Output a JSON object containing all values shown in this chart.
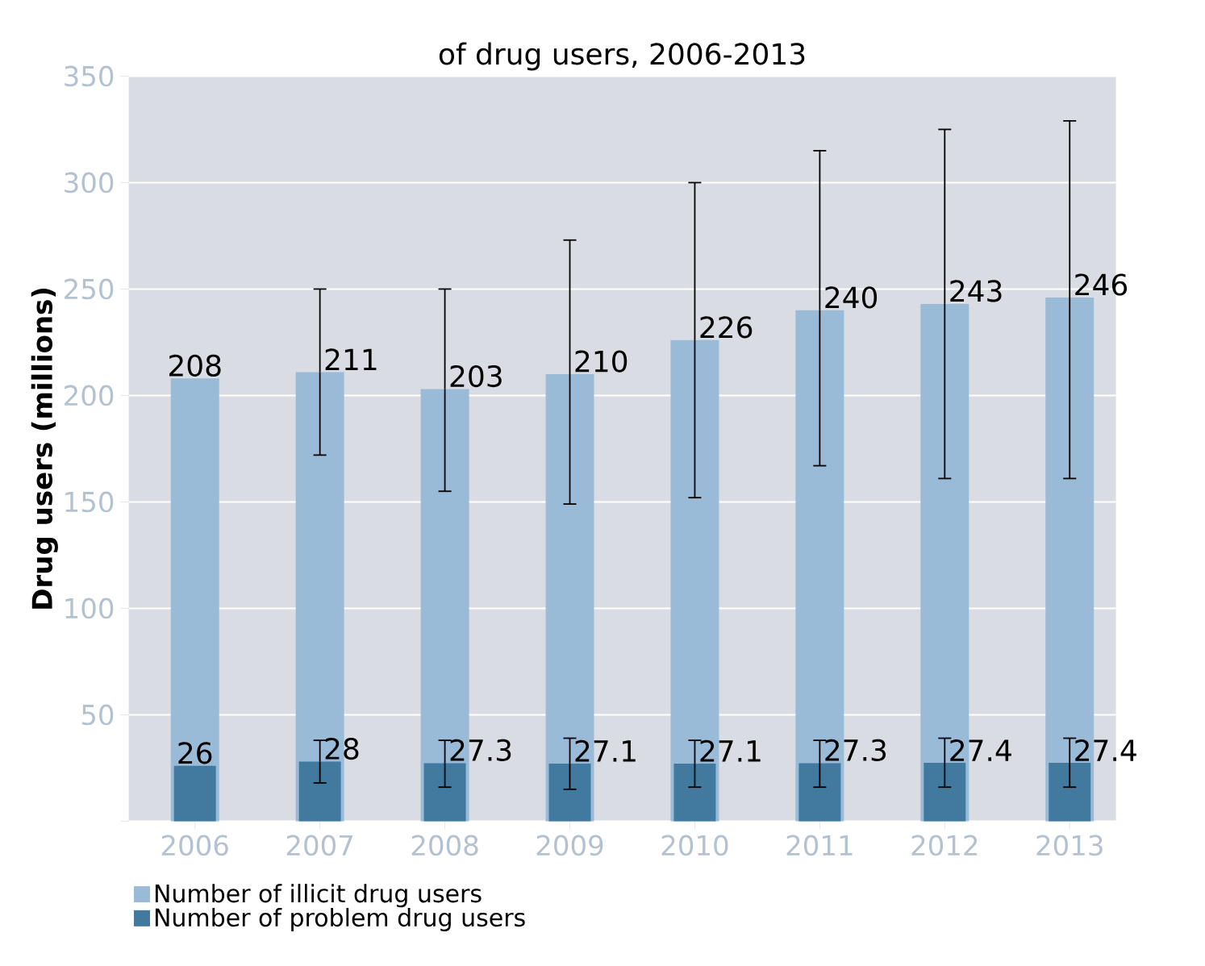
{
  "chart_data": {
    "type": "bar",
    "title": "of drug users, 2006-2013",
    "ylabel": "Drug users (millions)",
    "categories": [
      "2006",
      "2007",
      "2008",
      "2009",
      "2010",
      "2011",
      "2012",
      "2013"
    ],
    "series": [
      {
        "name": "Number of illicit drug users",
        "color": "#9abbd8",
        "values": [
          208,
          211,
          203,
          210,
          226,
          240,
          243,
          246
        ],
        "errors": [
          null,
          [
            172,
            250
          ],
          [
            155,
            250
          ],
          [
            149,
            273
          ],
          [
            152,
            300
          ],
          [
            167,
            315
          ],
          [
            161,
            325
          ],
          [
            161,
            329
          ]
        ]
      },
      {
        "name": "Number of problem drug users",
        "color": "#41799f",
        "values": [
          26,
          28,
          27.3,
          27.1,
          27.1,
          27.3,
          27.4,
          27.4
        ],
        "errors": [
          null,
          [
            18,
            38
          ],
          [
            16,
            38
          ],
          [
            15,
            39
          ],
          [
            16,
            38
          ],
          [
            16,
            38
          ],
          [
            16,
            39
          ],
          [
            16,
            39
          ]
        ]
      }
    ],
    "ylim": [
      0,
      350
    ],
    "yticks": [
      {
        "value": 0,
        "label": null
      },
      50,
      100,
      150,
      200,
      250,
      300,
      350
    ],
    "grid": "y",
    "legend": "bottom",
    "data_labels": true
  }
}
